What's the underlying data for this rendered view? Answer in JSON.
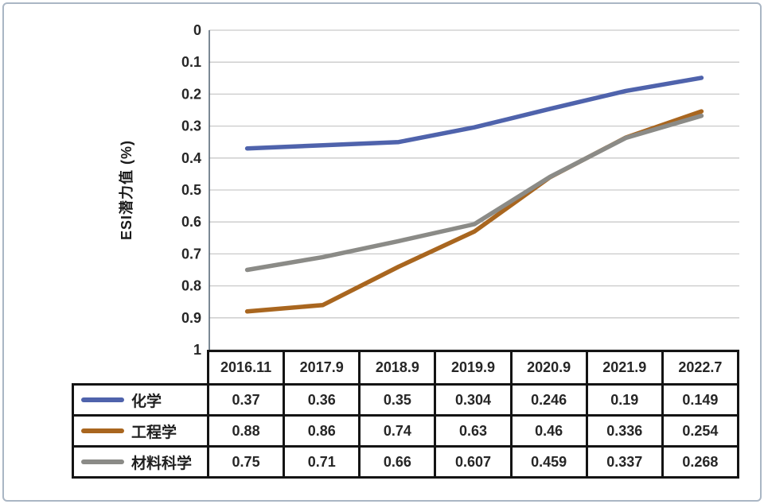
{
  "chart_data": {
    "type": "line",
    "title": "",
    "xlabel": "",
    "ylabel": "ESI潜力值 (%)",
    "categories": [
      "2016.11",
      "2017.9",
      "2018.9",
      "2019.9",
      "2020.9",
      "2021.9",
      "2022.7"
    ],
    "series": [
      {
        "name": "化学",
        "color": "#4F63AC",
        "values": [
          0.37,
          0.36,
          0.35,
          0.304,
          0.246,
          0.19,
          0.149
        ]
      },
      {
        "name": "工程学",
        "color": "#A9661F",
        "values": [
          0.88,
          0.86,
          0.74,
          0.63,
          0.46,
          0.336,
          0.254
        ]
      },
      {
        "name": "材料科学",
        "color": "#8B8B87",
        "values": [
          0.75,
          0.71,
          0.66,
          0.607,
          0.459,
          0.337,
          0.268
        ]
      }
    ],
    "y_axis": {
      "min": 0,
      "max": 1,
      "step": 0.1,
      "inverted": true,
      "tick_labels": [
        "0",
        "0.1",
        "0.2",
        "0.3",
        "0.4",
        "0.5",
        "0.6",
        "0.7",
        "0.8",
        "0.9",
        "1"
      ]
    },
    "grid": true,
    "legend_position": "table-left-column"
  },
  "colors": {
    "gridline": "#c9c9c9",
    "axis_line": "#5a6a7a",
    "table_border": "#141414",
    "text": "#262626",
    "frame_border": "#aab6c4",
    "background": "#ffffff"
  }
}
